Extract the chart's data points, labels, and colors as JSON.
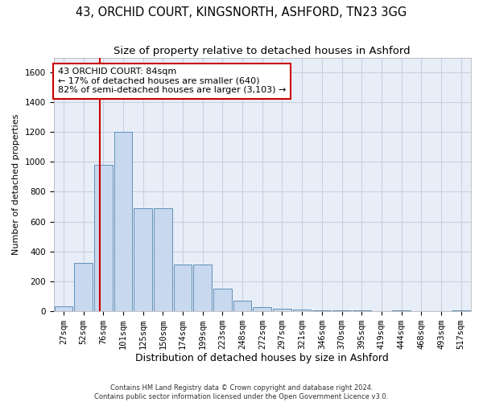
{
  "title": "43, ORCHID COURT, KINGSNORTH, ASHFORD, TN23 3GG",
  "subtitle": "Size of property relative to detached houses in Ashford",
  "xlabel": "Distribution of detached houses by size in Ashford",
  "ylabel": "Number of detached properties",
  "bar_labels": [
    "27sqm",
    "52sqm",
    "76sqm",
    "101sqm",
    "125sqm",
    "150sqm",
    "174sqm",
    "199sqm",
    "223sqm",
    "248sqm",
    "272sqm",
    "297sqm",
    "321sqm",
    "346sqm",
    "370sqm",
    "395sqm",
    "419sqm",
    "444sqm",
    "468sqm",
    "493sqm",
    "517sqm"
  ],
  "bar_values": [
    30,
    320,
    980,
    1200,
    690,
    690,
    310,
    310,
    150,
    70,
    25,
    15,
    10,
    5,
    5,
    5,
    0,
    5,
    0,
    0,
    5
  ],
  "bar_color": "#c8d8ee",
  "bar_edgecolor": "#6090b8",
  "grid_color": "#c8d0e0",
  "background_color": "#e8eef8",
  "red_line_color": "#cc0000",
  "annotation_text": "43 ORCHID COURT: 84sqm\n← 17% of detached houses are smaller (640)\n82% of semi-detached houses are larger (3,103) →",
  "annotation_box_color": "#cc0000",
  "ylim": [
    0,
    1700
  ],
  "yticks": [
    0,
    200,
    400,
    600,
    800,
    1000,
    1200,
    1400,
    1600
  ],
  "footnote": "Contains HM Land Registry data © Crown copyright and database right 2024.\nContains public sector information licensed under the Open Government Licence v3.0.",
  "title_fontsize": 10.5,
  "subtitle_fontsize": 9.5,
  "xlabel_fontsize": 9,
  "ylabel_fontsize": 8,
  "tick_fontsize": 7.5,
  "annot_fontsize": 8
}
